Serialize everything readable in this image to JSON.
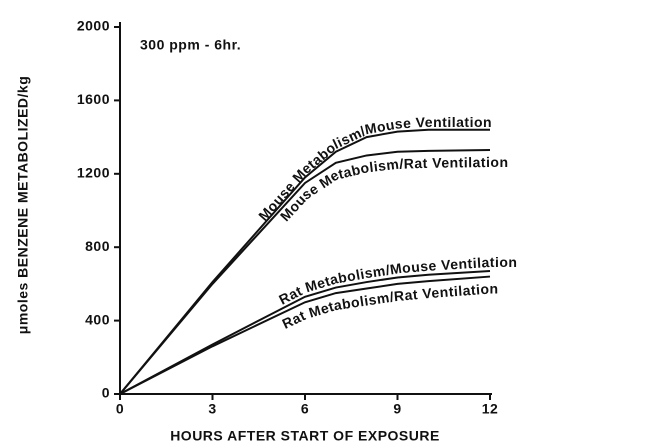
{
  "chart_data": {
    "type": "line",
    "annotation": "300 ppm  - 6hr.",
    "xlabel": "HOURS AFTER START OF EXPOSURE",
    "ylabel": "μmoles BENZENE METABOLIZED/kg",
    "x": [
      0,
      3,
      6,
      7,
      8,
      9,
      10,
      12
    ],
    "series": [
      {
        "name": "Mouse Metabolism/Mouse Ventilation",
        "color": "#111111",
        "values": [
          0,
          610,
          1180,
          1320,
          1400,
          1430,
          1440,
          1440
        ]
      },
      {
        "name": "Mouse Metabolism/Rat Ventilation",
        "color": "#111111",
        "values": [
          0,
          600,
          1150,
          1260,
          1300,
          1320,
          1325,
          1330
        ]
      },
      {
        "name": "Rat Metabolism/Mouse Ventilation",
        "color": "#111111",
        "values": [
          0,
          270,
          530,
          580,
          610,
          635,
          650,
          670
        ]
      },
      {
        "name": "Rat Metabolism/Rat Ventilation",
        "color": "#111111",
        "values": [
          0,
          260,
          500,
          550,
          575,
          600,
          615,
          640
        ]
      }
    ],
    "xlim": [
      0,
      12
    ],
    "xticks": [
      0,
      3,
      6,
      9,
      12
    ],
    "ylim": [
      0,
      2000
    ],
    "yticks": [
      0,
      400,
      800,
      1200,
      1600,
      2000
    ]
  }
}
